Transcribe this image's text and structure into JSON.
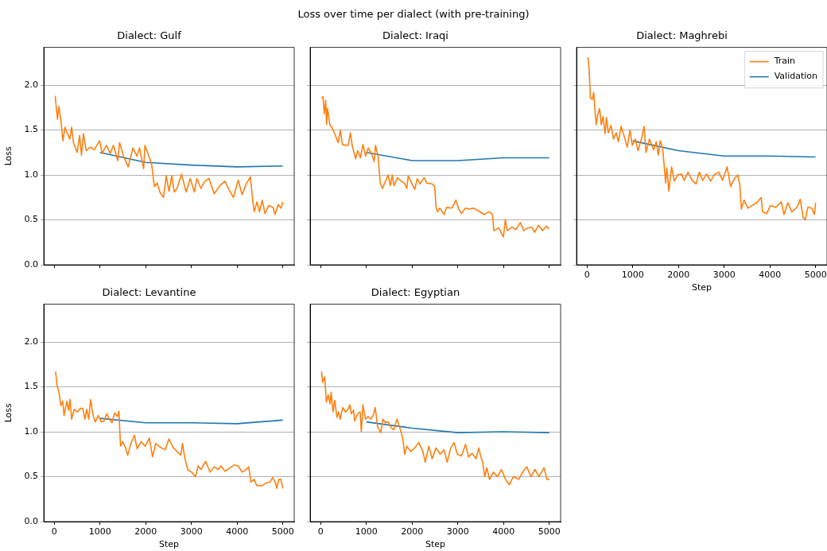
{
  "chart_data": [
    {
      "type": "line",
      "title": "Dialect: Gulf",
      "ylabel": "Loss",
      "annotations": [
        "Loss over time per dialect (with pre-training)"
      ],
      "xlim": [
        -230,
        5250
      ],
      "ylim": [
        0,
        2.42
      ],
      "xticks": [
        0,
        1000,
        2000,
        3000,
        4000,
        5000
      ],
      "yticks": [
        {
          "value": 0,
          "label": "0.0"
        },
        {
          "value": 0.5,
          "label": "0.5"
        },
        {
          "value": 1,
          "label": "1.0"
        },
        {
          "value": 1.5,
          "label": "1.5"
        },
        {
          "value": 2,
          "label": "2.0"
        }
      ],
      "tick_labels": "y",
      "grid": "y",
      "series": [
        {
          "color": "#ff7f0e",
          "x": [
            20,
            70,
            100,
            145,
            190,
            235,
            290,
            340,
            380,
            420,
            500,
            555,
            595,
            640,
            700,
            790,
            875,
            990,
            1050,
            1140,
            1225,
            1295,
            1390,
            1430,
            1515,
            1620,
            1720,
            1810,
            1865,
            1955,
            1985,
            2070,
            2130,
            2190,
            2250,
            2310,
            2390,
            2450,
            2510,
            2570,
            2625,
            2685,
            2785,
            2885,
            2975,
            3065,
            3120,
            3210,
            3295,
            3385,
            3500,
            3620,
            3735,
            3820,
            3920,
            4025,
            4110,
            4200,
            4290,
            4345,
            4375,
            4435,
            4490,
            4550,
            4610,
            4695,
            4785,
            4830,
            4900,
            4960,
            5000
          ],
          "values": [
            1.88,
            1.62,
            1.76,
            1.61,
            1.38,
            1.53,
            1.46,
            1.4,
            1.53,
            1.36,
            1.25,
            1.44,
            1.22,
            1.46,
            1.27,
            1.31,
            1.28,
            1.38,
            1.24,
            1.33,
            1.24,
            1.33,
            1.16,
            1.36,
            1.21,
            1.09,
            1.3,
            1.21,
            1.3,
            1.07,
            1.33,
            1.21,
            1.12,
            0.87,
            0.91,
            0.81,
            0.75,
            0.99,
            0.82,
            0.99,
            0.81,
            0.85,
            1.01,
            0.81,
            0.96,
            0.81,
            0.96,
            0.85,
            0.93,
            0.96,
            0.79,
            0.88,
            0.93,
            0.84,
            0.75,
            0.94,
            0.78,
            0.9,
            0.98,
            0.7,
            0.59,
            0.7,
            0.59,
            0.72,
            0.57,
            0.66,
            0.64,
            0.56,
            0.67,
            0.63,
            0.7
          ]
        },
        {
          "color": "#1f77b4",
          "x": [
            1000,
            2000,
            3000,
            4000,
            5000
          ],
          "values": [
            1.25,
            1.14,
            1.11,
            1.09,
            1.1
          ]
        }
      ]
    },
    {
      "type": "line",
      "title": "Dialect: Iraqi",
      "xlim": [
        -230,
        5250
      ],
      "ylim": [
        0,
        2.42
      ],
      "xticks": [
        0,
        1000,
        2000,
        3000,
        4000,
        5000
      ],
      "yticks": [
        0,
        0.5,
        1,
        1.5,
        2
      ],
      "tick_labels": false,
      "grid": "y",
      "series": [
        {
          "color": "#ff7f0e",
          "x": [
            20,
            50,
            80,
            110,
            130,
            150,
            200,
            245,
            285,
            345,
            385,
            430,
            475,
            545,
            605,
            650,
            690,
            765,
            810,
            870,
            925,
            985,
            1040,
            1100,
            1170,
            1200,
            1255,
            1305,
            1350,
            1420,
            1475,
            1525,
            1565,
            1605,
            1680,
            1740,
            1830,
            1885,
            1915,
            1970,
            2060,
            2115,
            2175,
            2265,
            2320,
            2440,
            2495,
            2525,
            2555,
            2610,
            2700,
            2755,
            2870,
            2960,
            3020,
            3080,
            3165,
            3255,
            3340,
            3455,
            3575,
            3690,
            3760,
            3790,
            3895,
            4000,
            4040,
            4085,
            4185,
            4270,
            4370,
            4445,
            4535,
            4620,
            4680,
            4765,
            4855,
            4940,
            5000
          ],
          "values": [
            1.86,
            1.87,
            1.68,
            1.83,
            1.56,
            1.74,
            1.56,
            1.53,
            1.49,
            1.41,
            1.36,
            1.5,
            1.34,
            1.33,
            1.33,
            1.47,
            1.33,
            1.18,
            1.27,
            1.19,
            1.34,
            1.21,
            1.3,
            1.25,
            1.15,
            1.33,
            1.21,
            0.91,
            0.85,
            0.93,
            1.0,
            0.88,
            1.0,
            0.88,
            0.97,
            0.94,
            0.91,
            0.85,
            0.99,
            0.93,
            0.84,
            0.96,
            0.9,
            0.97,
            0.91,
            0.9,
            0.87,
            0.64,
            0.59,
            0.63,
            0.56,
            0.64,
            0.63,
            0.72,
            0.62,
            0.57,
            0.63,
            0.62,
            0.63,
            0.6,
            0.56,
            0.59,
            0.56,
            0.38,
            0.41,
            0.31,
            0.5,
            0.38,
            0.42,
            0.39,
            0.47,
            0.38,
            0.41,
            0.42,
            0.36,
            0.44,
            0.38,
            0.43,
            0.4
          ]
        },
        {
          "color": "#1f77b4",
          "x": [
            1000,
            2000,
            3000,
            4000,
            5000
          ],
          "values": [
            1.25,
            1.16,
            1.16,
            1.19,
            1.19
          ]
        }
      ]
    },
    {
      "type": "line",
      "title": "Dialect: Maghrebi",
      "xlabel": "Step",
      "legend": "top right",
      "xlim": [
        -230,
        5250
      ],
      "ylim": [
        0,
        2.42
      ],
      "xticks": [
        0,
        1000,
        2000,
        3000,
        4000,
        5000
      ],
      "yticks": [
        0,
        0.5,
        1,
        1.5,
        2
      ],
      "tick_labels": "x",
      "grid": "y",
      "series": [
        {
          "name": "Train",
          "color": "#ff7f0e",
          "x": [
            20,
            45,
            75,
            115,
            145,
            175,
            200,
            235,
            275,
            310,
            350,
            395,
            425,
            465,
            525,
            580,
            640,
            685,
            745,
            815,
            880,
            940,
            990,
            1060,
            1115,
            1190,
            1250,
            1290,
            1365,
            1455,
            1515,
            1560,
            1600,
            1655,
            1690,
            1720,
            1745,
            1790,
            1850,
            1910,
            1980,
            2065,
            2125,
            2210,
            2300,
            2385,
            2455,
            2530,
            2615,
            2705,
            2780,
            2880,
            2965,
            3065,
            3140,
            3225,
            3300,
            3345,
            3375,
            3435,
            3520,
            3610,
            3715,
            3810,
            3840,
            3930,
            4015,
            4130,
            4250,
            4310,
            4395,
            4480,
            4595,
            4665,
            4725,
            4775,
            4830,
            4920,
            4975,
            5000
          ],
          "values": [
            2.31,
            2.18,
            1.86,
            1.84,
            1.92,
            1.72,
            1.56,
            1.67,
            1.74,
            1.56,
            1.65,
            1.46,
            1.64,
            1.47,
            1.55,
            1.4,
            1.47,
            1.37,
            1.54,
            1.43,
            1.31,
            1.5,
            1.33,
            1.4,
            1.27,
            1.4,
            1.54,
            1.25,
            1.4,
            1.28,
            1.37,
            1.22,
            1.38,
            1.3,
            1.09,
            0.91,
            1.08,
            0.82,
            1.09,
            0.93,
            1.0,
            1.01,
            0.94,
            1.03,
            0.94,
            0.9,
            1.03,
            0.94,
            1.01,
            0.93,
            1.0,
            1.03,
            0.94,
            1.09,
            0.87,
            0.96,
            1.0,
            0.88,
            0.62,
            0.72,
            0.63,
            0.66,
            0.69,
            0.75,
            0.59,
            0.57,
            0.66,
            0.64,
            0.7,
            0.56,
            0.69,
            0.59,
            0.64,
            0.73,
            0.53,
            0.5,
            0.64,
            0.63,
            0.56,
            0.69
          ]
        },
        {
          "name": "Validation",
          "color": "#1f77b4",
          "x": [
            1000,
            2000,
            3000,
            4000,
            5000
          ],
          "values": [
            1.38,
            1.27,
            1.21,
            1.21,
            1.2
          ]
        }
      ]
    },
    {
      "type": "line",
      "title": "Dialect: Levantine",
      "xlabel": "Step",
      "ylabel": "Loss",
      "xlim": [
        -230,
        5250
      ],
      "ylim": [
        0,
        2.42
      ],
      "xticks": [
        0,
        1000,
        2000,
        3000,
        4000,
        5000
      ],
      "yticks": [
        {
          "value": 0,
          "label": "0.0"
        },
        {
          "value": 0.5,
          "label": "0.5"
        },
        {
          "value": 1,
          "label": "1.0"
        },
        {
          "value": 1.5,
          "label": "1.5"
        },
        {
          "value": 2,
          "label": "2.0"
        }
      ],
      "grid": "y",
      "series": [
        {
          "color": "#ff7f0e",
          "x": [
            30,
            60,
            110,
            145,
            185,
            215,
            275,
            315,
            345,
            380,
            435,
            505,
            565,
            625,
            670,
            710,
            755,
            795,
            855,
            900,
            960,
            1030,
            1090,
            1145,
            1205,
            1265,
            1320,
            1380,
            1415,
            1450,
            1495,
            1555,
            1610,
            1670,
            1755,
            1815,
            1900,
            1990,
            2080,
            2150,
            2220,
            2310,
            2425,
            2510,
            2595,
            2685,
            2770,
            2805,
            2860,
            2920,
            3005,
            3090,
            3150,
            3210,
            3310,
            3410,
            3500,
            3590,
            3645,
            3735,
            3820,
            3935,
            4025,
            4110,
            4200,
            4255,
            4300,
            4375,
            4430,
            4545,
            4635,
            4720,
            4780,
            4840,
            4865,
            4915,
            4955,
            5000
          ],
          "values": [
            1.67,
            1.52,
            1.42,
            1.29,
            1.34,
            1.18,
            1.34,
            1.24,
            1.36,
            1.14,
            1.25,
            1.22,
            1.26,
            1.26,
            1.14,
            1.25,
            1.14,
            1.36,
            1.17,
            1.11,
            1.18,
            1.11,
            1.12,
            1.2,
            1.14,
            1.1,
            1.21,
            1.17,
            1.23,
            0.84,
            0.89,
            0.83,
            0.74,
            0.86,
            0.96,
            0.81,
            0.89,
            0.84,
            0.93,
            0.72,
            0.87,
            0.83,
            0.8,
            0.92,
            0.83,
            0.78,
            0.74,
            0.87,
            0.7,
            0.58,
            0.55,
            0.5,
            0.62,
            0.58,
            0.67,
            0.55,
            0.61,
            0.58,
            0.62,
            0.56,
            0.59,
            0.63,
            0.62,
            0.55,
            0.58,
            0.61,
            0.44,
            0.47,
            0.4,
            0.4,
            0.43,
            0.44,
            0.49,
            0.43,
            0.37,
            0.47,
            0.47,
            0.37
          ]
        },
        {
          "color": "#1f77b4",
          "x": [
            1000,
            2000,
            3000,
            4000,
            5000
          ],
          "values": [
            1.15,
            1.1,
            1.1,
            1.09,
            1.13
          ]
        }
      ]
    },
    {
      "type": "line",
      "title": "Dialect: Egyptian",
      "xlabel": "Step",
      "xlim": [
        -230,
        5250
      ],
      "ylim": [
        0,
        2.42
      ],
      "xticks": [
        0,
        1000,
        2000,
        3000,
        4000,
        5000
      ],
      "yticks": [
        0,
        0.5,
        1,
        1.5,
        2
      ],
      "tick_labels": "x",
      "grid": "y",
      "series": [
        {
          "color": "#ff7f0e",
          "x": [
            20,
            45,
            90,
            125,
            165,
            205,
            230,
            270,
            310,
            355,
            395,
            425,
            485,
            545,
            600,
            640,
            670,
            720,
            745,
            805,
            865,
            890,
            925,
            980,
            1040,
            1095,
            1155,
            1195,
            1245,
            1315,
            1360,
            1420,
            1475,
            1535,
            1595,
            1670,
            1735,
            1795,
            1840,
            1885,
            1970,
            2060,
            2145,
            2235,
            2290,
            2365,
            2440,
            2525,
            2615,
            2700,
            2770,
            2845,
            2920,
            2990,
            3080,
            3170,
            3235,
            3315,
            3400,
            3460,
            3500,
            3545,
            3590,
            3635,
            3695,
            3780,
            3870,
            3955,
            4045,
            4130,
            4215,
            4335,
            4420,
            4510,
            4600,
            4690,
            4775,
            4890,
            4950,
            5000
          ],
          "values": [
            1.67,
            1.55,
            1.61,
            1.33,
            1.41,
            1.31,
            1.44,
            1.22,
            1.35,
            1.16,
            1.22,
            1.14,
            1.27,
            1.22,
            1.25,
            1.3,
            1.2,
            1.24,
            1.12,
            1.2,
            1.22,
            1.0,
            1.3,
            1.14,
            1.17,
            1.14,
            1.19,
            1.27,
            1.06,
            0.99,
            1.14,
            1.1,
            1.11,
            1.05,
            1.02,
            1.14,
            1.04,
            0.93,
            0.75,
            0.84,
            0.78,
            0.82,
            0.88,
            0.78,
            0.66,
            0.84,
            0.7,
            0.82,
            0.75,
            0.8,
            0.66,
            0.82,
            0.88,
            0.75,
            0.73,
            0.86,
            0.72,
            0.76,
            0.7,
            0.82,
            0.73,
            0.66,
            0.5,
            0.6,
            0.47,
            0.55,
            0.5,
            0.58,
            0.47,
            0.41,
            0.5,
            0.47,
            0.55,
            0.61,
            0.5,
            0.58,
            0.5,
            0.6,
            0.47,
            0.47
          ]
        },
        {
          "color": "#1f77b4",
          "x": [
            1000,
            2000,
            3000,
            4000,
            5000
          ],
          "values": [
            1.11,
            1.04,
            0.99,
            1.0,
            0.99
          ]
        }
      ]
    }
  ]
}
